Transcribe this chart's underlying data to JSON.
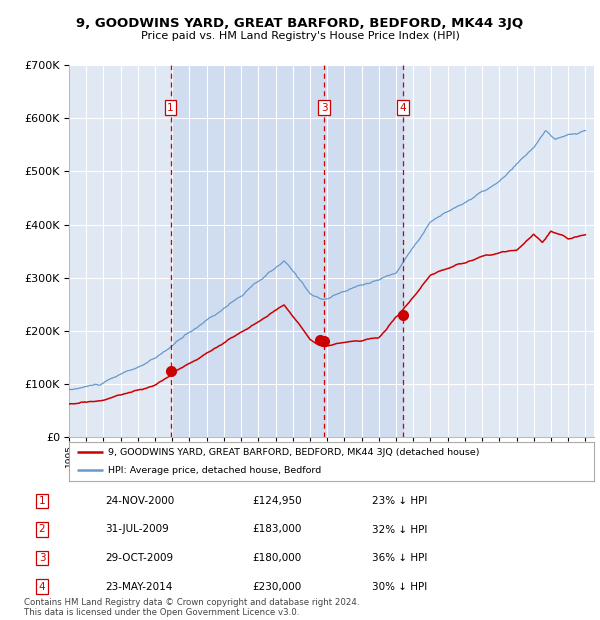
{
  "title": "9, GOODWINS YARD, GREAT BARFORD, BEDFORD, MK44 3JQ",
  "subtitle": "Price paid vs. HM Land Registry's House Price Index (HPI)",
  "ylim": [
    0,
    700000
  ],
  "yticks": [
    0,
    100000,
    200000,
    300000,
    400000,
    500000,
    600000,
    700000
  ],
  "ytick_labels": [
    "£0",
    "£100K",
    "£200K",
    "£300K",
    "£400K",
    "£500K",
    "£600K",
    "£700K"
  ],
  "background_color": "#ffffff",
  "plot_bg_color": "#e0e8f4",
  "grid_color": "#ffffff",
  "hpi_line_color": "#6699cc",
  "price_line_color": "#cc0000",
  "shade_color": "#d0dcf0",
  "vline_color": "#cc0000",
  "transactions": [
    {
      "label": "1",
      "date_num": 2000.9,
      "price": 124950
    },
    {
      "label": "2",
      "date_num": 2009.58,
      "price": 183000
    },
    {
      "label": "3",
      "date_num": 2009.83,
      "price": 180000
    },
    {
      "label": "4",
      "date_num": 2014.39,
      "price": 230000
    }
  ],
  "vline_transactions": [
    "1",
    "3",
    "4"
  ],
  "legend_property_label": "9, GOODWINS YARD, GREAT BARFORD, BEDFORD, MK44 3JQ (detached house)",
  "legend_hpi_label": "HPI: Average price, detached house, Bedford",
  "footnote1": "Contains HM Land Registry data © Crown copyright and database right 2024.",
  "footnote2": "This data is licensed under the Open Government Licence v3.0.",
  "table_rows": [
    [
      "1",
      "24-NOV-2000",
      "£124,950",
      "23% ↓ HPI"
    ],
    [
      "2",
      "31-JUL-2009",
      "£183,000",
      "32% ↓ HPI"
    ],
    [
      "3",
      "29-OCT-2009",
      "£180,000",
      "36% ↓ HPI"
    ],
    [
      "4",
      "23-MAY-2014",
      "£230,000",
      "30% ↓ HPI"
    ]
  ]
}
